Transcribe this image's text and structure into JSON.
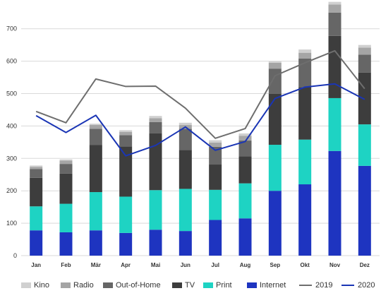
{
  "chart_data": {
    "type": "bar",
    "stacked": true,
    "categories": [
      "Jan",
      "Feb",
      "Mär",
      "Apr",
      "Mai",
      "Jun",
      "Jul",
      "Aug",
      "Sep",
      "Okt",
      "Nov",
      "Dez"
    ],
    "ylim": [
      0,
      780
    ],
    "yticks": [
      "0",
      "100",
      "200",
      "300",
      "400",
      "500",
      "600",
      "700"
    ],
    "grid": true,
    "legend_position": "bottom",
    "series": [
      {
        "name": "Internet",
        "color": "#1e34c0",
        "values": [
          78,
          72,
          78,
          70,
          80,
          76,
          110,
          115,
          200,
          220,
          323,
          277
        ]
      },
      {
        "name": "Print",
        "color": "#1ed3c3",
        "values": [
          74,
          88,
          118,
          112,
          122,
          130,
          93,
          108,
          142,
          138,
          163,
          128
        ]
      },
      {
        "name": "TV",
        "color": "#3d3d3d",
        "values": [
          88,
          93,
          145,
          155,
          175,
          120,
          78,
          83,
          157,
          162,
          192,
          160
        ]
      },
      {
        "name": "Out-of-Home",
        "color": "#666666",
        "values": [
          27,
          30,
          50,
          35,
          35,
          65,
          55,
          49,
          78,
          88,
          72,
          55
        ]
      },
      {
        "name": "Radio",
        "color": "#a5a5a5",
        "values": [
          7,
          10,
          12,
          10,
          12,
          12,
          13,
          15,
          18,
          18,
          25,
          22
        ]
      },
      {
        "name": "Kino",
        "color": "#d0d0d0",
        "values": [
          4,
          4,
          4,
          5,
          7,
          7,
          7,
          7,
          4,
          10,
          8,
          8
        ]
      }
    ],
    "lines": [
      {
        "name": "2019",
        "color": "#6e6e6e",
        "values": [
          445,
          410,
          545,
          522,
          523,
          455,
          362,
          392,
          555,
          595,
          632,
          515
        ]
      },
      {
        "name": "2020",
        "color": "#1a35b5",
        "values": [
          432,
          380,
          433,
          308,
          340,
          397,
          325,
          352,
          485,
          520,
          530,
          482
        ]
      }
    ],
    "legend_order": [
      "Kino",
      "Radio",
      "Out-of-Home",
      "TV",
      "Print",
      "Internet",
      "2019",
      "2020"
    ]
  }
}
